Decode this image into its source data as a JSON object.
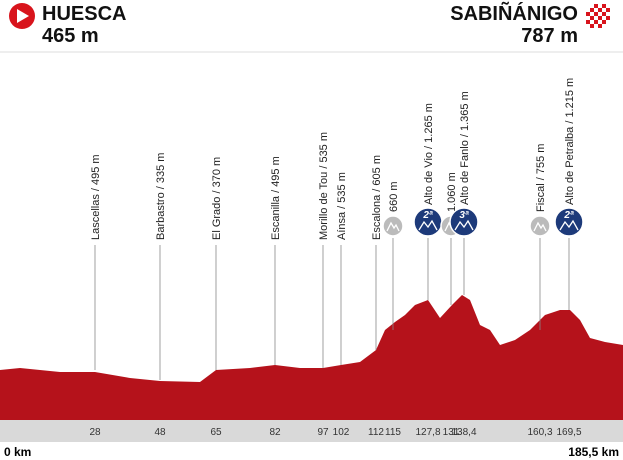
{
  "start": {
    "name": "HUESCA",
    "altitude": "465 m",
    "distance": "0 km"
  },
  "finish": {
    "name": "SABIÑÁNIGO",
    "altitude": "787 m",
    "distance": "185,5 km"
  },
  "waypoints": [
    {
      "label": "Lascellas / 495 m",
      "km": "28"
    },
    {
      "label": "Barbastro / 335 m",
      "km": "48"
    },
    {
      "label": "El Grado / 370 m",
      "km": "65"
    },
    {
      "label": "Escanilla / 495 m",
      "km": "82"
    },
    {
      "label": "Morillo de Tou / 535 m",
      "km": "97"
    },
    {
      "label": "Aínsa / 535 m",
      "km": "102"
    },
    {
      "label": "Escalona / 605 m",
      "km": "112"
    },
    {
      "label": "660 m",
      "km": "115"
    },
    {
      "label": "Alto de Vio / 1.265 m",
      "km": "127,8",
      "category": "2ª"
    },
    {
      "label": "1.060 m",
      "km": "131"
    },
    {
      "label": "Alto de Fanlo / 1.365 m",
      "km": "138,4",
      "category": "3ª"
    },
    {
      "label": "Fiscal / 755 m",
      "km": "160,3"
    },
    {
      "label": "Alto de Petralba / 1.215 m",
      "km": "169,5",
      "category": "2ª"
    }
  ]
}
